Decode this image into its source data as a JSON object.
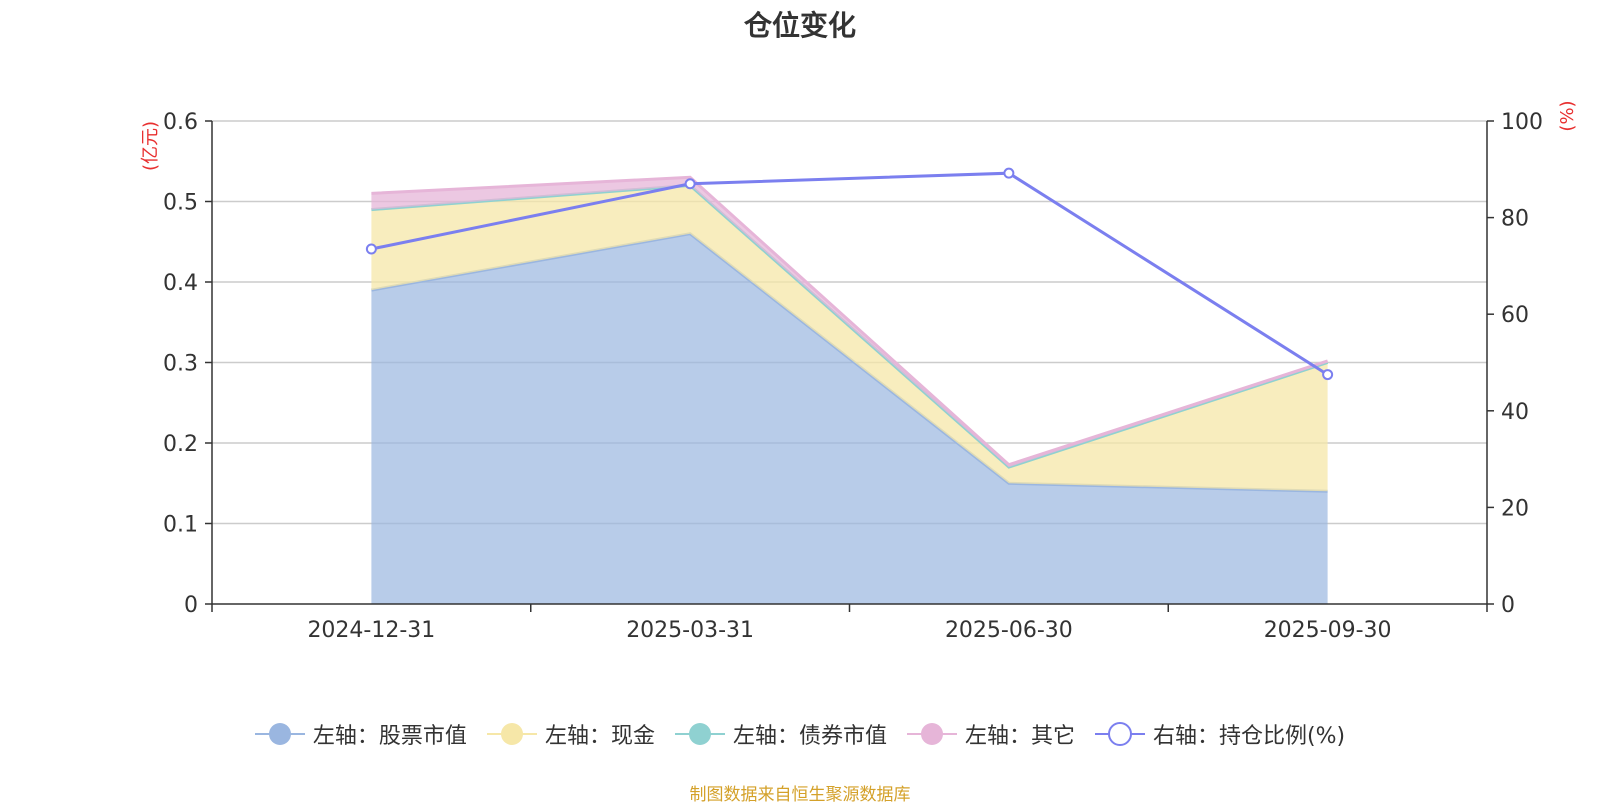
{
  "title": "仓位变化",
  "source": "制图数据来自恒生聚源数据库",
  "colors": {
    "stock": "#9ab6e0",
    "cash": "#f6e7a8",
    "bond": "#8fd1d1",
    "other": "#e6b5d8",
    "ratio": "#7b7fef",
    "unit": "#e83030",
    "source": "#d4a12a"
  },
  "chart_data": {
    "type": "area",
    "categories": [
      "2024-12-31",
      "2025-03-31",
      "2025-06-30",
      "2025-09-30"
    ],
    "left_axis": {
      "unit_label": "(亿元)",
      "ticks": [
        "0",
        "0.1",
        "0.2",
        "0.3",
        "0.4",
        "0.5",
        "0.6"
      ],
      "ylim": [
        0,
        0.6
      ]
    },
    "right_axis": {
      "unit_label": "(%)",
      "ticks": [
        "0",
        "20",
        "40",
        "60",
        "80",
        "100"
      ],
      "ylim": [
        0,
        100
      ]
    },
    "grid": true,
    "legend_position": "bottom-center",
    "series": [
      {
        "key": "stock",
        "name": "左轴：股票市值",
        "axis": "left",
        "kind": "area",
        "values": [
          0.39,
          0.46,
          0.15,
          0.14
        ]
      },
      {
        "key": "cash",
        "name": "左轴：现金",
        "axis": "left",
        "kind": "area",
        "values": [
          0.1,
          0.06,
          0.02,
          0.16
        ]
      },
      {
        "key": "bond",
        "name": "左轴：债券市值",
        "axis": "left",
        "kind": "area",
        "values": [
          0,
          0,
          0,
          0
        ]
      },
      {
        "key": "other",
        "name": "左轴：其它",
        "axis": "left",
        "kind": "area",
        "values": [
          0.02,
          0.01,
          0.003,
          0.002
        ]
      },
      {
        "key": "ratio",
        "name": "右轴：持仓比例(%)",
        "axis": "right",
        "kind": "line",
        "values": [
          73.5,
          87.0,
          89.2,
          47.5
        ]
      }
    ]
  }
}
